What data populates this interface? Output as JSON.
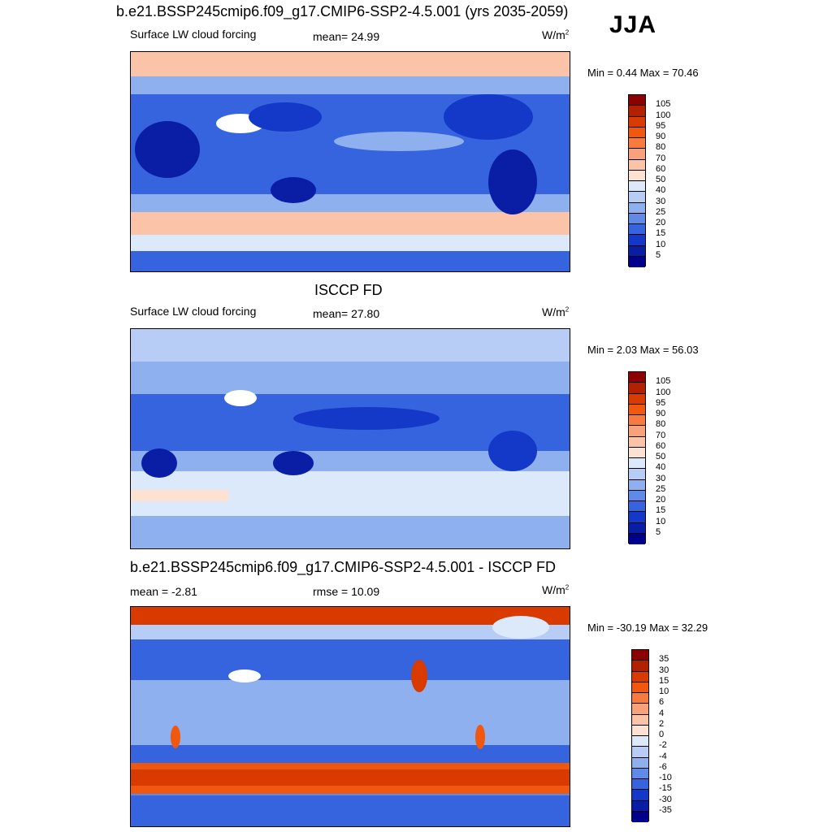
{
  "header": {
    "title": "b.e21.BSSP245cmip6.f09_g17.CMIP6-SSP2-4.5.001 (yrs 2035-2059)",
    "season": "JJA"
  },
  "panels": [
    {
      "section_title": "",
      "left_label": "Surface LW cloud forcing",
      "center_label": "mean=  24.99",
      "units_base": "W/m",
      "units_exp": "2",
      "minmax": "Min =   0.44 Max =  70.46",
      "colorbar": {
        "labels": [
          "105",
          "100",
          "95",
          "90",
          "80",
          "70",
          "60",
          "50",
          "40",
          "30",
          "25",
          "20",
          "15",
          "10",
          "5"
        ],
        "colors": [
          "#8b0000",
          "#b22000",
          "#d83a00",
          "#f05810",
          "#f77b3e",
          "#f9a17a",
          "#fbc4a8",
          "#fde2d2",
          "#dce9fb",
          "#b8cdf5",
          "#8fb0ef",
          "#5f8ae6",
          "#3564de",
          "#1438c8",
          "#0a1ea5",
          "#00008b"
        ]
      }
    },
    {
      "section_title": "ISCCP FD",
      "left_label": "Surface LW cloud forcing",
      "center_label": "mean=  27.80",
      "units_base": "W/m",
      "units_exp": "2",
      "minmax": "Min =   2.03 Max =  56.03",
      "colorbar": {
        "labels": [
          "105",
          "100",
          "95",
          "90",
          "80",
          "70",
          "60",
          "50",
          "40",
          "30",
          "25",
          "20",
          "15",
          "10",
          "5"
        ],
        "colors": [
          "#8b0000",
          "#b22000",
          "#d83a00",
          "#f05810",
          "#f77b3e",
          "#f9a17a",
          "#fbc4a8",
          "#fde2d2",
          "#dce9fb",
          "#b8cdf5",
          "#8fb0ef",
          "#5f8ae6",
          "#3564de",
          "#1438c8",
          "#0a1ea5",
          "#00008b"
        ]
      }
    },
    {
      "section_title": "b.e21.BSSP245cmip6.f09_g17.CMIP6-SSP2-4.5.001 - ISCCP FD",
      "left_label": "mean =  -2.81",
      "center_label": "rmse =  10.09",
      "units_base": "W/m",
      "units_exp": "2",
      "minmax": "Min = -30.19 Max =  32.29",
      "colorbar": {
        "labels": [
          "35",
          "30",
          "15",
          "10",
          "6",
          "4",
          "2",
          "0",
          "-2",
          "-4",
          "-6",
          "-10",
          "-15",
          "-30",
          "-35"
        ],
        "colors": [
          "#8b0000",
          "#b22000",
          "#d83a00",
          "#f05810",
          "#f77b3e",
          "#f9a17a",
          "#fbc4a8",
          "#fde2d2",
          "#dce9fb",
          "#b8cdf5",
          "#8fb0ef",
          "#5f8ae6",
          "#3564de",
          "#1438c8",
          "#0a1ea5",
          "#00008b"
        ]
      }
    }
  ],
  "map_colors": {
    "dark": "#0a1ea5",
    "deep": "#1438c8",
    "mid": "#3564de",
    "light": "#8fb0ef",
    "pale": "#dce9fb",
    "peach": "#fbc4a8",
    "orange": "#f05810",
    "red": "#d83a00",
    "white": "#ffffff"
  }
}
